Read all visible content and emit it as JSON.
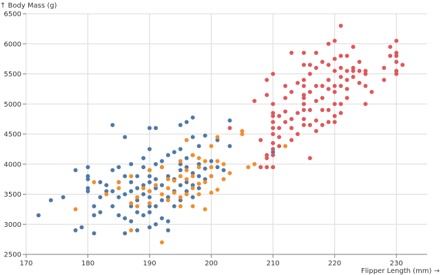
{
  "chart_data": {
    "type": "scatter",
    "xlabel": "Flipper Length (mm) →",
    "ylabel": "↑ Body Mass (g)",
    "xlim": [
      170,
      235
    ],
    "ylim": [
      2500,
      6500
    ],
    "x_ticks": [
      170,
      180,
      190,
      200,
      210,
      220,
      230
    ],
    "y_ticks": [
      2500,
      3000,
      3500,
      4000,
      4500,
      5000,
      5500,
      6000,
      6500
    ],
    "grid": true,
    "series": [
      {
        "color": "#4e79a7",
        "points": [
          [
            172,
            3150
          ],
          [
            174,
            3400
          ],
          [
            176,
            3450
          ],
          [
            178,
            2900
          ],
          [
            178,
            3900
          ],
          [
            179,
            2950
          ],
          [
            180,
            3550
          ],
          [
            180,
            3600
          ],
          [
            180,
            3750
          ],
          [
            180,
            3800
          ],
          [
            180,
            3950
          ],
          [
            181,
            2850
          ],
          [
            181,
            3300
          ],
          [
            181,
            3150
          ],
          [
            182,
            3200
          ],
          [
            182,
            3450
          ],
          [
            182,
            3700
          ],
          [
            183,
            3550
          ],
          [
            183,
            3650
          ],
          [
            184,
            3300
          ],
          [
            184,
            3550
          ],
          [
            184,
            3900
          ],
          [
            184,
            4650
          ],
          [
            185,
            3150
          ],
          [
            185,
            3450
          ],
          [
            185,
            3700
          ],
          [
            185,
            3950
          ],
          [
            186,
            2850
          ],
          [
            186,
            3100
          ],
          [
            186,
            3500
          ],
          [
            186,
            3800
          ],
          [
            186,
            4450
          ],
          [
            187,
            3050
          ],
          [
            187,
            3300
          ],
          [
            187,
            3550
          ],
          [
            187,
            3700
          ],
          [
            187,
            4000
          ],
          [
            188,
            2900
          ],
          [
            188,
            3200
          ],
          [
            188,
            3400
          ],
          [
            188,
            3600
          ],
          [
            188,
            3800
          ],
          [
            189,
            3150
          ],
          [
            189,
            3500
          ],
          [
            189,
            3650
          ],
          [
            189,
            3950
          ],
          [
            189,
            4100
          ],
          [
            190,
            2950
          ],
          [
            190,
            3200
          ],
          [
            190,
            3300
          ],
          [
            190,
            3450
          ],
          [
            190,
            3550
          ],
          [
            190,
            3700
          ],
          [
            190,
            3800
          ],
          [
            190,
            3900
          ],
          [
            190,
            4250
          ],
          [
            190,
            4600
          ],
          [
            191,
            3000
          ],
          [
            191,
            3300
          ],
          [
            191,
            3600
          ],
          [
            191,
            3750
          ],
          [
            191,
            4000
          ],
          [
            191,
            4600
          ],
          [
            192,
            3100
          ],
          [
            192,
            3400
          ],
          [
            192,
            3650
          ],
          [
            192,
            3950
          ],
          [
            192,
            4050
          ],
          [
            193,
            2900
          ],
          [
            193,
            3050
          ],
          [
            193,
            3450
          ],
          [
            193,
            3800
          ],
          [
            193,
            4150
          ],
          [
            194,
            3300
          ],
          [
            194,
            3550
          ],
          [
            194,
            3750
          ],
          [
            194,
            4200
          ],
          [
            195,
            3400
          ],
          [
            195,
            3650
          ],
          [
            195,
            3900
          ],
          [
            195,
            4000
          ],
          [
            195,
            4250
          ],
          [
            195,
            4650
          ],
          [
            196,
            3550
          ],
          [
            196,
            3700
          ],
          [
            196,
            3950
          ],
          [
            196,
            4100
          ],
          [
            196,
            4700
          ],
          [
            197,
            3450
          ],
          [
            197,
            3650
          ],
          [
            197,
            3850
          ],
          [
            197,
            4150
          ],
          [
            197,
            4450
          ],
          [
            197,
            4775
          ],
          [
            198,
            3600
          ],
          [
            198,
            3800
          ],
          [
            198,
            4000
          ],
          [
            198,
            4300
          ],
          [
            199,
            3750
          ],
          [
            199,
            3925
          ],
          [
            199,
            4475
          ],
          [
            200,
            3800
          ],
          [
            200,
            4050
          ],
          [
            201,
            3950
          ],
          [
            201,
            4400
          ],
          [
            202,
            3900
          ],
          [
            203,
            4300
          ],
          [
            203,
            4725
          ],
          [
            210,
            4200
          ]
        ]
      },
      {
        "color": "#f28e2b",
        "points": [
          [
            178,
            3250
          ],
          [
            181,
            3700
          ],
          [
            183,
            3500
          ],
          [
            185,
            3600
          ],
          [
            185,
            3700
          ],
          [
            187,
            2900
          ],
          [
            187,
            3350
          ],
          [
            187,
            3800
          ],
          [
            188,
            3450
          ],
          [
            188,
            3300
          ],
          [
            189,
            3600
          ],
          [
            190,
            3550
          ],
          [
            190,
            3350
          ],
          [
            190,
            3900
          ],
          [
            191,
            3650
          ],
          [
            192,
            2700
          ],
          [
            192,
            3500
          ],
          [
            192,
            3950
          ],
          [
            193,
            3600
          ],
          [
            193,
            3750
          ],
          [
            193,
            3400
          ],
          [
            194,
            3725
          ],
          [
            194,
            3525
          ],
          [
            195,
            3450
          ],
          [
            195,
            3800
          ],
          [
            195,
            4050
          ],
          [
            195,
            3300
          ],
          [
            196,
            3500
          ],
          [
            196,
            3750
          ],
          [
            196,
            3900
          ],
          [
            196,
            4400
          ],
          [
            197,
            3600
          ],
          [
            197,
            3800
          ],
          [
            197,
            3300
          ],
          [
            197,
            4150
          ],
          [
            198,
            3675
          ],
          [
            198,
            3500
          ],
          [
            198,
            3950
          ],
          [
            198,
            4100
          ],
          [
            199,
            3250
          ],
          [
            199,
            3700
          ],
          [
            199,
            4050
          ],
          [
            200,
            3525
          ],
          [
            200,
            3800
          ],
          [
            200,
            3950
          ],
          [
            200,
            4300
          ],
          [
            201,
            3575
          ],
          [
            201,
            4050
          ],
          [
            201,
            4450
          ],
          [
            202,
            3750
          ],
          [
            202,
            4000
          ],
          [
            203,
            3850
          ],
          [
            205,
            4550
          ],
          [
            205,
            4500
          ],
          [
            206,
            3950
          ],
          [
            207,
            4000
          ],
          [
            208,
            3950
          ],
          [
            210,
            3950
          ],
          [
            212,
            4300
          ]
        ]
      },
      {
        "color": "#e15759",
        "points": [
          [
            203,
            4600
          ],
          [
            207,
            5050
          ],
          [
            208,
            3950
          ],
          [
            208,
            4400
          ],
          [
            209,
            5150
          ],
          [
            209,
            5400
          ],
          [
            209,
            4150
          ],
          [
            209,
            3950
          ],
          [
            209,
            4100
          ],
          [
            210,
            3950
          ],
          [
            210,
            4150
          ],
          [
            210,
            4250
          ],
          [
            210,
            4350
          ],
          [
            210,
            4500
          ],
          [
            210,
            4600
          ],
          [
            210,
            4700
          ],
          [
            210,
            4800
          ],
          [
            210,
            4850
          ],
          [
            210,
            5000
          ],
          [
            210,
            5500
          ],
          [
            211,
            4300
          ],
          [
            211,
            4450
          ],
          [
            211,
            4600
          ],
          [
            211,
            4800
          ],
          [
            212,
            4700
          ],
          [
            212,
            4875
          ],
          [
            212,
            5100
          ],
          [
            212,
            5300
          ],
          [
            213,
            4400
          ],
          [
            213,
            4600
          ],
          [
            213,
            4750
          ],
          [
            213,
            5200
          ],
          [
            213,
            5850
          ],
          [
            214,
            4500
          ],
          [
            214,
            4850
          ],
          [
            214,
            5350
          ],
          [
            215,
            4650
          ],
          [
            215,
            4750
          ],
          [
            215,
            4900
          ],
          [
            215,
            5000
          ],
          [
            215,
            5100
          ],
          [
            215,
            5150
          ],
          [
            215,
            5300
          ],
          [
            215,
            5400
          ],
          [
            215,
            5650
          ],
          [
            215,
            5850
          ],
          [
            216,
            4100
          ],
          [
            216,
            4650
          ],
          [
            216,
            4900
          ],
          [
            216,
            5200
          ],
          [
            216,
            5500
          ],
          [
            216,
            5650
          ],
          [
            217,
            4550
          ],
          [
            217,
            4725
          ],
          [
            217,
            5050
          ],
          [
            217,
            5300
          ],
          [
            217,
            5600
          ],
          [
            217,
            5850
          ],
          [
            218,
            4650
          ],
          [
            218,
            4900
          ],
          [
            218,
            5100
          ],
          [
            218,
            5300
          ],
          [
            218,
            5700
          ],
          [
            219,
            4700
          ],
          [
            219,
            4900
          ],
          [
            219,
            5250
          ],
          [
            219,
            5400
          ],
          [
            219,
            5650
          ],
          [
            219,
            6000
          ],
          [
            220,
            4700
          ],
          [
            220,
            4800
          ],
          [
            220,
            5000
          ],
          [
            220,
            5200
          ],
          [
            220,
            5300
          ],
          [
            220,
            5550
          ],
          [
            220,
            5750
          ],
          [
            220,
            6050
          ],
          [
            221,
            4850
          ],
          [
            221,
            5000
          ],
          [
            221,
            5300
          ],
          [
            221,
            5450
          ],
          [
            221,
            5600
          ],
          [
            221,
            5800
          ],
          [
            221,
            6300
          ],
          [
            222,
            5100
          ],
          [
            222,
            5250
          ],
          [
            222,
            5400
          ],
          [
            222,
            5550
          ],
          [
            222,
            5800
          ],
          [
            223,
            5450
          ],
          [
            223,
            5550
          ],
          [
            223,
            5600
          ],
          [
            223,
            5950
          ],
          [
            224,
            5350
          ],
          [
            224,
            5550
          ],
          [
            224,
            5700
          ],
          [
            225,
            5300
          ],
          [
            225,
            5500
          ],
          [
            225,
            5550
          ],
          [
            225,
            5000
          ],
          [
            226,
            5200
          ],
          [
            228,
            5400
          ],
          [
            228,
            5600
          ],
          [
            229,
            5800
          ],
          [
            229,
            5950
          ],
          [
            230,
            5500
          ],
          [
            230,
            5550
          ],
          [
            230,
            5700
          ],
          [
            230,
            5800
          ],
          [
            230,
            5850
          ],
          [
            230,
            6050
          ],
          [
            231,
            5650
          ]
        ]
      }
    ]
  }
}
